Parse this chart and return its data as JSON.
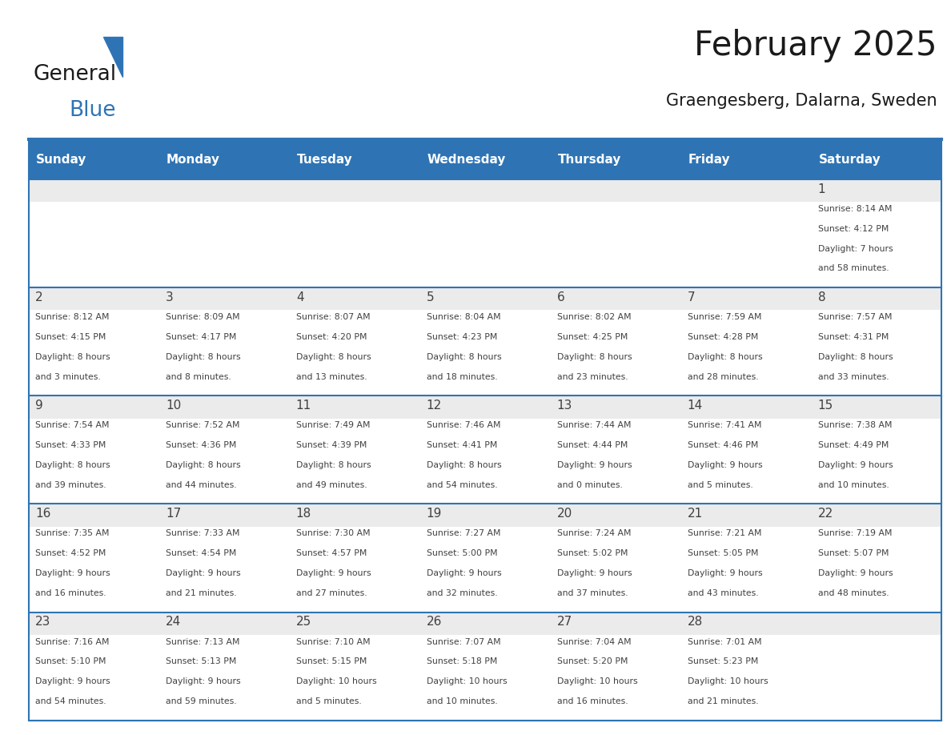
{
  "title": "February 2025",
  "subtitle": "Graengesberg, Dalarna, Sweden",
  "header_bg": "#2E74B5",
  "header_text_color": "#FFFFFF",
  "day_names": [
    "Sunday",
    "Monday",
    "Tuesday",
    "Wednesday",
    "Thursday",
    "Friday",
    "Saturday"
  ],
  "cell_bg_light": "#EBEBEB",
  "cell_bg_white": "#FFFFFF",
  "text_color": "#404040",
  "line_color": "#2E74B5",
  "days": [
    {
      "day": 1,
      "col": 6,
      "row": 0,
      "sunrise": "8:14 AM",
      "sunset": "4:12 PM",
      "daylight": "7 hours and 58 minutes."
    },
    {
      "day": 2,
      "col": 0,
      "row": 1,
      "sunrise": "8:12 AM",
      "sunset": "4:15 PM",
      "daylight": "8 hours and 3 minutes."
    },
    {
      "day": 3,
      "col": 1,
      "row": 1,
      "sunrise": "8:09 AM",
      "sunset": "4:17 PM",
      "daylight": "8 hours and 8 minutes."
    },
    {
      "day": 4,
      "col": 2,
      "row": 1,
      "sunrise": "8:07 AM",
      "sunset": "4:20 PM",
      "daylight": "8 hours and 13 minutes."
    },
    {
      "day": 5,
      "col": 3,
      "row": 1,
      "sunrise": "8:04 AM",
      "sunset": "4:23 PM",
      "daylight": "8 hours and 18 minutes."
    },
    {
      "day": 6,
      "col": 4,
      "row": 1,
      "sunrise": "8:02 AM",
      "sunset": "4:25 PM",
      "daylight": "8 hours and 23 minutes."
    },
    {
      "day": 7,
      "col": 5,
      "row": 1,
      "sunrise": "7:59 AM",
      "sunset": "4:28 PM",
      "daylight": "8 hours and 28 minutes."
    },
    {
      "day": 8,
      "col": 6,
      "row": 1,
      "sunrise": "7:57 AM",
      "sunset": "4:31 PM",
      "daylight": "8 hours and 33 minutes."
    },
    {
      "day": 9,
      "col": 0,
      "row": 2,
      "sunrise": "7:54 AM",
      "sunset": "4:33 PM",
      "daylight": "8 hours and 39 minutes."
    },
    {
      "day": 10,
      "col": 1,
      "row": 2,
      "sunrise": "7:52 AM",
      "sunset": "4:36 PM",
      "daylight": "8 hours and 44 minutes."
    },
    {
      "day": 11,
      "col": 2,
      "row": 2,
      "sunrise": "7:49 AM",
      "sunset": "4:39 PM",
      "daylight": "8 hours and 49 minutes."
    },
    {
      "day": 12,
      "col": 3,
      "row": 2,
      "sunrise": "7:46 AM",
      "sunset": "4:41 PM",
      "daylight": "8 hours and 54 minutes."
    },
    {
      "day": 13,
      "col": 4,
      "row": 2,
      "sunrise": "7:44 AM",
      "sunset": "4:44 PM",
      "daylight": "9 hours and 0 minutes."
    },
    {
      "day": 14,
      "col": 5,
      "row": 2,
      "sunrise": "7:41 AM",
      "sunset": "4:46 PM",
      "daylight": "9 hours and 5 minutes."
    },
    {
      "day": 15,
      "col": 6,
      "row": 2,
      "sunrise": "7:38 AM",
      "sunset": "4:49 PM",
      "daylight": "9 hours and 10 minutes."
    },
    {
      "day": 16,
      "col": 0,
      "row": 3,
      "sunrise": "7:35 AM",
      "sunset": "4:52 PM",
      "daylight": "9 hours and 16 minutes."
    },
    {
      "day": 17,
      "col": 1,
      "row": 3,
      "sunrise": "7:33 AM",
      "sunset": "4:54 PM",
      "daylight": "9 hours and 21 minutes."
    },
    {
      "day": 18,
      "col": 2,
      "row": 3,
      "sunrise": "7:30 AM",
      "sunset": "4:57 PM",
      "daylight": "9 hours and 27 minutes."
    },
    {
      "day": 19,
      "col": 3,
      "row": 3,
      "sunrise": "7:27 AM",
      "sunset": "5:00 PM",
      "daylight": "9 hours and 32 minutes."
    },
    {
      "day": 20,
      "col": 4,
      "row": 3,
      "sunrise": "7:24 AM",
      "sunset": "5:02 PM",
      "daylight": "9 hours and 37 minutes."
    },
    {
      "day": 21,
      "col": 5,
      "row": 3,
      "sunrise": "7:21 AM",
      "sunset": "5:05 PM",
      "daylight": "9 hours and 43 minutes."
    },
    {
      "day": 22,
      "col": 6,
      "row": 3,
      "sunrise": "7:19 AM",
      "sunset": "5:07 PM",
      "daylight": "9 hours and 48 minutes."
    },
    {
      "day": 23,
      "col": 0,
      "row": 4,
      "sunrise": "7:16 AM",
      "sunset": "5:10 PM",
      "daylight": "9 hours and 54 minutes."
    },
    {
      "day": 24,
      "col": 1,
      "row": 4,
      "sunrise": "7:13 AM",
      "sunset": "5:13 PM",
      "daylight": "9 hours and 59 minutes."
    },
    {
      "day": 25,
      "col": 2,
      "row": 4,
      "sunrise": "7:10 AM",
      "sunset": "5:15 PM",
      "daylight": "10 hours and 5 minutes."
    },
    {
      "day": 26,
      "col": 3,
      "row": 4,
      "sunrise": "7:07 AM",
      "sunset": "5:18 PM",
      "daylight": "10 hours and 10 minutes."
    },
    {
      "day": 27,
      "col": 4,
      "row": 4,
      "sunrise": "7:04 AM",
      "sunset": "5:20 PM",
      "daylight": "10 hours and 16 minutes."
    },
    {
      "day": 28,
      "col": 5,
      "row": 4,
      "sunrise": "7:01 AM",
      "sunset": "5:23 PM",
      "daylight": "10 hours and 21 minutes."
    }
  ],
  "num_rows": 5,
  "num_cols": 7,
  "logo_text_general": "General",
  "logo_text_blue": "Blue",
  "logo_general_color": "#1A1A1A",
  "logo_blue_color": "#2E74B5",
  "logo_triangle_color": "#2E74B5"
}
